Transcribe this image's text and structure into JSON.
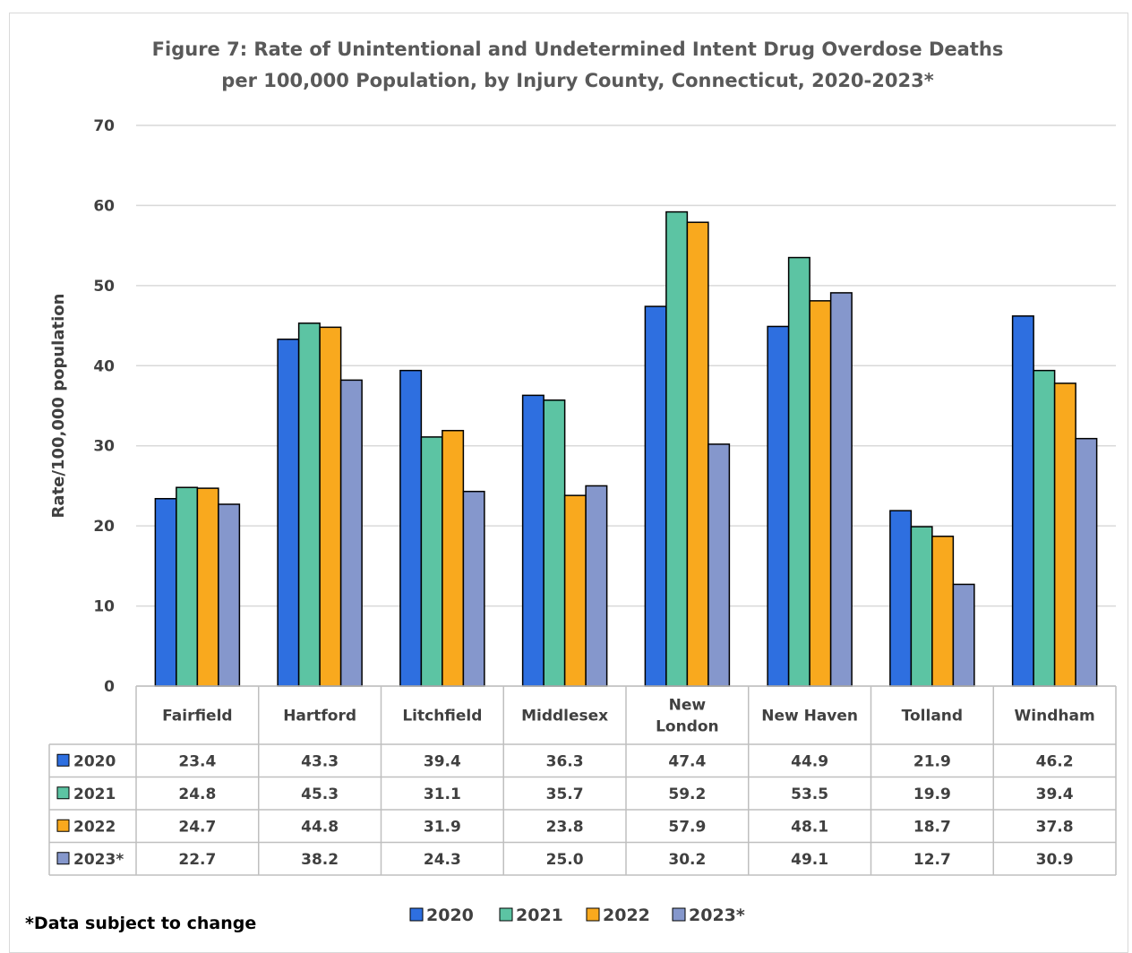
{
  "chart_data": {
    "type": "bar",
    "title": [
      "Figure 7: Rate of Unintentional and Undetermined Intent Drug Overdose Deaths",
      "per 100,000 Population, by Injury County, Connecticut, 2020-2023*"
    ],
    "ylabel": "Rate/100,000 population",
    "xlabel": "",
    "ylim": [
      0,
      70
    ],
    "yticks": [
      0,
      10,
      20,
      30,
      40,
      50,
      60,
      70
    ],
    "grid": true,
    "legend_position": "bottom",
    "categories": [
      [
        "Fairfield"
      ],
      [
        "Hartford"
      ],
      [
        "Litchfield"
      ],
      [
        "Middlesex"
      ],
      [
        "New",
        "London"
      ],
      [
        "New Haven"
      ],
      [
        "Tolland"
      ],
      [
        "Windham"
      ]
    ],
    "series": [
      {
        "name": "2020",
        "color": "#2e6fe0",
        "values": [
          "23.4",
          "43.3",
          "39.4",
          "36.3",
          "47.4",
          "44.9",
          "21.9",
          "46.2"
        ]
      },
      {
        "name": "2021",
        "color": "#5cc4a3",
        "values": [
          "24.8",
          "45.3",
          "31.1",
          "35.7",
          "59.2",
          "53.5",
          "19.9",
          "39.4"
        ]
      },
      {
        "name": "2022",
        "color": "#f9a91e",
        "values": [
          "24.7",
          "44.8",
          "31.9",
          "23.8",
          "57.9",
          "48.1",
          "18.7",
          "37.8"
        ]
      },
      {
        "name": "2023*",
        "color": "#8597cc",
        "values": [
          "22.7",
          "38.2",
          "24.3",
          "25.0",
          "30.2",
          "49.1",
          "12.7",
          "30.9"
        ]
      }
    ],
    "data_table": true
  },
  "footnote": "*Data subject to change"
}
